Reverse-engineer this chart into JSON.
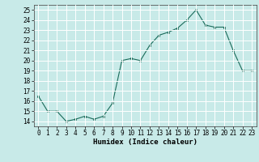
{
  "x": [
    0,
    1,
    2,
    3,
    4,
    5,
    6,
    7,
    8,
    9,
    10,
    11,
    12,
    13,
    14,
    15,
    16,
    17,
    18,
    19,
    20,
    21,
    22,
    23
  ],
  "y": [
    16.5,
    15.0,
    15.0,
    14.0,
    14.2,
    14.5,
    14.2,
    14.5,
    15.8,
    20.0,
    20.2,
    20.0,
    21.5,
    22.5,
    22.8,
    23.2,
    24.0,
    25.0,
    23.5,
    23.3,
    23.3,
    21.0,
    19.0,
    19.0
  ],
  "xlabel": "Humidex (Indice chaleur)",
  "xlim": [
    -0.5,
    23.5
  ],
  "ylim": [
    13.5,
    25.5
  ],
  "yticks": [
    14,
    15,
    16,
    17,
    18,
    19,
    20,
    21,
    22,
    23,
    24,
    25
  ],
  "xticks": [
    0,
    1,
    2,
    3,
    4,
    5,
    6,
    7,
    8,
    9,
    10,
    11,
    12,
    13,
    14,
    15,
    16,
    17,
    18,
    19,
    20,
    21,
    22,
    23
  ],
  "line_color": "#1a6b5a",
  "marker_color": "#1a6b5a",
  "bg_color": "#c8eae8",
  "grid_color": "#ffffff",
  "label_fontsize": 6.5,
  "tick_fontsize": 5.5
}
